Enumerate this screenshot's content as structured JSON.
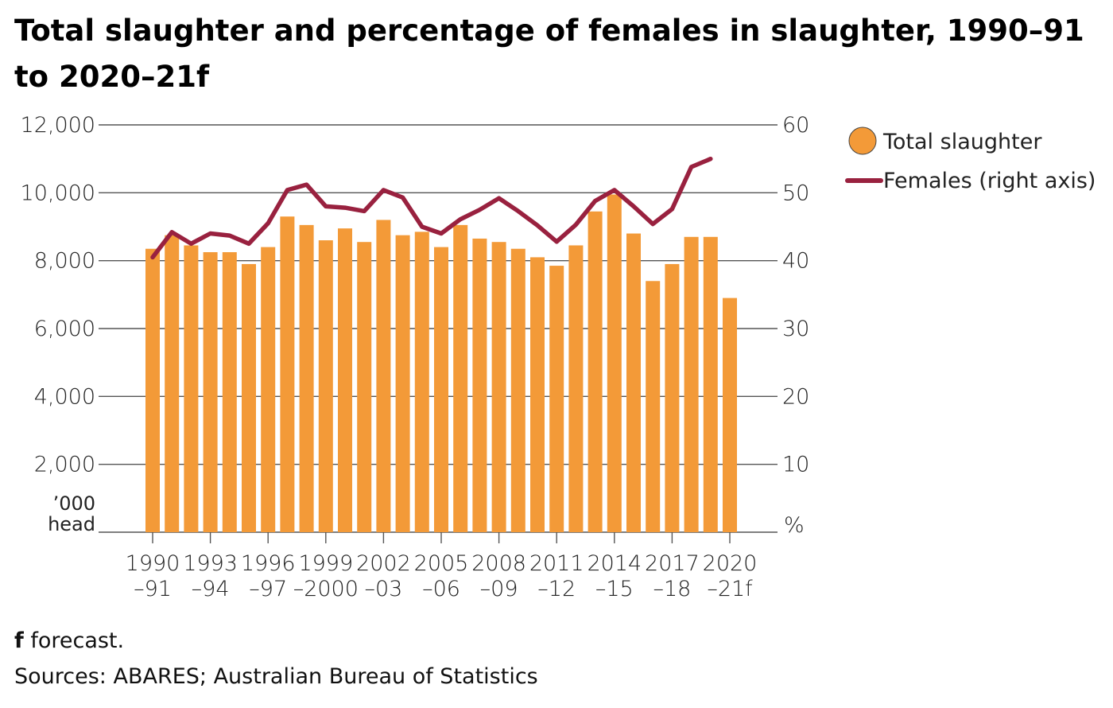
{
  "title": "Total slaughter and percentage of females in slaughter, 1990–91 to 2020–21f",
  "footnote": {
    "marker": "f",
    "text": " forecast."
  },
  "source": "Sources: ABARES; Australian Bureau of Statistics",
  "colors": {
    "bars": "#F39A38",
    "line": "#99213F",
    "axis": "#555555"
  },
  "chart_data": {
    "type": "bar",
    "categories": [
      "1990–91",
      "1991–92",
      "1992–93",
      "1993–94",
      "1994–95",
      "1995–96",
      "1996–97",
      "1997–98",
      "1998–99",
      "1999–2000",
      "2000–01",
      "2001–02",
      "2002–03",
      "2003–04",
      "2004–05",
      "2005–06",
      "2006–07",
      "2007–08",
      "2008–09",
      "2009–10",
      "2010–11",
      "2011–12",
      "2012–13",
      "2013–14",
      "2014–15",
      "2015–16",
      "2016–17",
      "2017–18",
      "2018–19",
      "2019–20",
      "2020–21f"
    ],
    "x_tick_labels": [
      {
        "top": "1990",
        "bottom": "–91",
        "index": 0
      },
      {
        "top": "1993",
        "bottom": "–94",
        "index": 3
      },
      {
        "top": "1996",
        "bottom": "–97",
        "index": 6
      },
      {
        "top": "1999",
        "bottom": "–2000",
        "index": 9
      },
      {
        "top": "2002",
        "bottom": "–03",
        "index": 12
      },
      {
        "top": "2005",
        "bottom": "–06",
        "index": 15
      },
      {
        "top": "2008",
        "bottom": "–09",
        "index": 18
      },
      {
        "top": "2011",
        "bottom": "–12",
        "index": 21
      },
      {
        "top": "2014",
        "bottom": "–15",
        "index": 24
      },
      {
        "top": "2017",
        "bottom": "–18",
        "index": 27
      },
      {
        "top": "2020",
        "bottom": "–21f",
        "index": 30
      }
    ],
    "series": [
      {
        "name": "Total slaughter",
        "kind": "bar",
        "axis": "left",
        "values": [
          8350,
          8750,
          8450,
          8250,
          8250,
          7900,
          8400,
          9300,
          9050,
          8600,
          8950,
          8550,
          9200,
          8750,
          8850,
          8400,
          9050,
          8650,
          8550,
          8350,
          8100,
          7850,
          8450,
          9450,
          9950,
          8800,
          7400,
          7900,
          8700,
          8700,
          6900
        ]
      },
      {
        "name": "Females (right axis)",
        "kind": "line",
        "axis": "right",
        "values": [
          40.5,
          44.2,
          42.5,
          44.0,
          43.7,
          42.5,
          45.5,
          50.4,
          51.2,
          48.0,
          47.8,
          47.3,
          50.4,
          49.3,
          45.0,
          44.0,
          46.1,
          47.5,
          49.2,
          47.3,
          45.2,
          42.8,
          45.3,
          48.8,
          50.4,
          48.0,
          45.4,
          47.6,
          53.8,
          55.0,
          null
        ]
      }
    ],
    "y_left": {
      "ticks": [
        "12,000",
        "10,000",
        "8,000",
        "6,000",
        "4,000",
        "2,000"
      ],
      "tick_values": [
        12000,
        10000,
        8000,
        6000,
        4000,
        2000
      ],
      "unit": [
        "’000",
        "head"
      ],
      "ylim": [
        0,
        12000
      ]
    },
    "y_right": {
      "ticks": [
        "60",
        "50",
        "40",
        "30",
        "20",
        "10"
      ],
      "tick_values": [
        60,
        50,
        40,
        30,
        20,
        10
      ],
      "unit": "%",
      "ylim": [
        0,
        60
      ]
    },
    "legend": {
      "placement": "right",
      "entries": [
        "Total slaughter",
        "Females (right axis)"
      ]
    }
  }
}
